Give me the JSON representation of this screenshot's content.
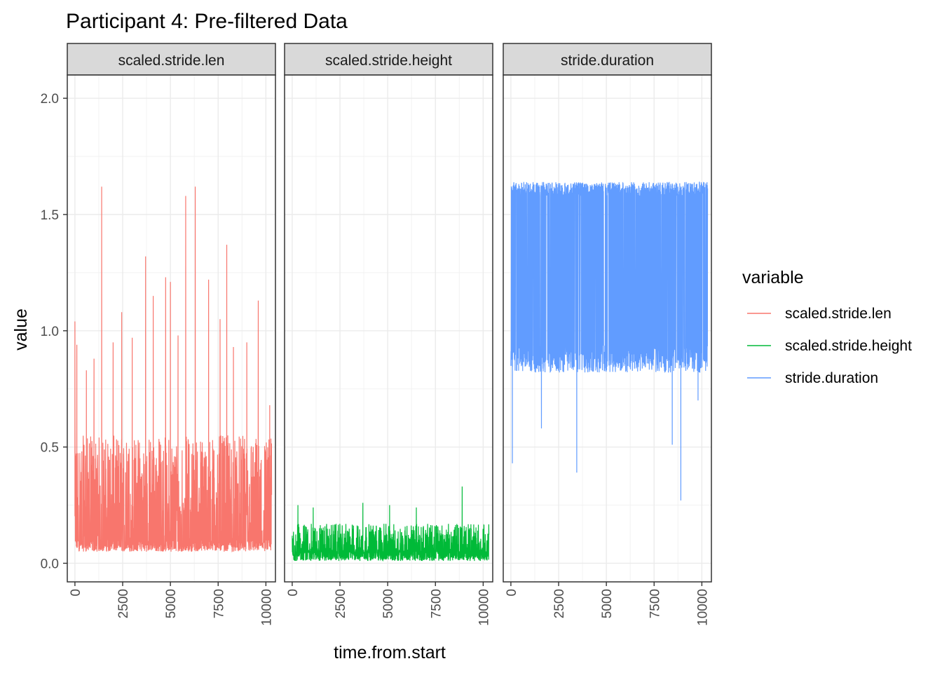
{
  "chart_data": {
    "type": "line",
    "title": "Participant 4: Pre-filtered Data",
    "xlabel": "time.from.start",
    "ylabel": "value",
    "facet_by": "variable",
    "xlim": [
      -400,
      10500
    ],
    "ylim": [
      -0.08,
      2.1
    ],
    "x_ticks": [
      0,
      2500,
      5000,
      7500,
      10000
    ],
    "y_ticks": [
      0.0,
      0.5,
      1.0,
      1.5,
      2.0
    ],
    "y_tick_labels": [
      "0.0",
      "0.5",
      "1.0",
      "1.5",
      "2.0"
    ],
    "grid": true,
    "legend": {
      "title": "variable",
      "position": "right",
      "entries": [
        "scaled.stride.len",
        "scaled.stride.height",
        "stride.duration"
      ]
    },
    "series": [
      {
        "name": "scaled.stride.len",
        "color": "#F8766D",
        "x_range": [
          0,
          10300
        ],
        "typical_range": [
          0.05,
          0.55
        ],
        "min": 0.0,
        "max": 1.62,
        "peaks": [
          {
            "x": 0,
            "y": 1.04
          },
          {
            "x": 100,
            "y": 0.94
          },
          {
            "x": 600,
            "y": 0.83
          },
          {
            "x": 1000,
            "y": 0.88
          },
          {
            "x": 1400,
            "y": 1.62
          },
          {
            "x": 2000,
            "y": 0.95
          },
          {
            "x": 2450,
            "y": 1.08
          },
          {
            "x": 3000,
            "y": 0.97
          },
          {
            "x": 3700,
            "y": 1.32
          },
          {
            "x": 4100,
            "y": 1.15
          },
          {
            "x": 4750,
            "y": 1.23
          },
          {
            "x": 5000,
            "y": 1.21
          },
          {
            "x": 5400,
            "y": 0.98
          },
          {
            "x": 5800,
            "y": 1.58
          },
          {
            "x": 6300,
            "y": 1.62
          },
          {
            "x": 7000,
            "y": 1.22
          },
          {
            "x": 7600,
            "y": 1.05
          },
          {
            "x": 7950,
            "y": 1.37
          },
          {
            "x": 8300,
            "y": 0.93
          },
          {
            "x": 9000,
            "y": 0.95
          },
          {
            "x": 9600,
            "y": 1.13
          },
          {
            "x": 10200,
            "y": 0.68
          }
        ]
      },
      {
        "name": "scaled.stride.height",
        "color": "#00BA38",
        "x_range": [
          0,
          10300
        ],
        "typical_range": [
          0.01,
          0.17
        ],
        "min": 0.0,
        "max": 0.33,
        "peaks": [
          {
            "x": 300,
            "y": 0.25
          },
          {
            "x": 1100,
            "y": 0.24
          },
          {
            "x": 3700,
            "y": 0.26
          },
          {
            "x": 5100,
            "y": 0.25
          },
          {
            "x": 6500,
            "y": 0.24
          },
          {
            "x": 8900,
            "y": 0.33
          }
        ]
      },
      {
        "name": "stride.duration",
        "color": "#619CFF",
        "x_range": [
          0,
          10300
        ],
        "typical_range": [
          0.82,
          1.64
        ],
        "min": 0.27,
        "max": 1.64,
        "dips": [
          {
            "x": 80,
            "y": 0.43
          },
          {
            "x": 1600,
            "y": 0.58
          },
          {
            "x": 3450,
            "y": 0.39
          },
          {
            "x": 8450,
            "y": 0.51
          },
          {
            "x": 8900,
            "y": 0.27
          },
          {
            "x": 9800,
            "y": 0.7
          }
        ]
      }
    ]
  }
}
